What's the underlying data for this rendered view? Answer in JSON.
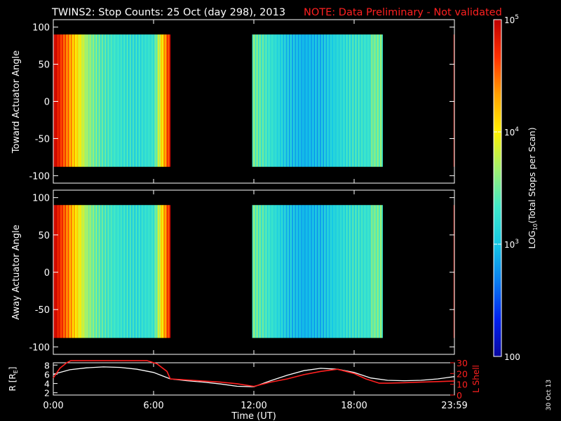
{
  "title": "TWINS2: Stop Counts: 25 Oct (day 298), 2013",
  "note": "NOTE: Data Preliminary - Not validated",
  "footer_date": "30 Oct 13",
  "colors": {
    "note": "#ff2020",
    "rline": "#ffffff",
    "lshell": "#ff2020"
  },
  "chart_data": [
    {
      "type": "heatmap",
      "ylabel": "Toward Actuator Angle",
      "ylim": [
        -110,
        110
      ],
      "yticks": [
        "100",
        "50",
        "0",
        "-50",
        "-100"
      ],
      "ytick_values": [
        100,
        50,
        0,
        -50,
        -100
      ],
      "data_extent": {
        "x_hours": [
          0.0,
          24.0
        ],
        "angle": [
          -88,
          90
        ]
      },
      "data_intervals_hours": [
        [
          0.0,
          7.0
        ],
        [
          11.9,
          19.7
        ],
        [
          23.95,
          24.0
        ]
      ],
      "color_profile": [
        1.0,
        0.78,
        0.55,
        0.45,
        0.42,
        0.4,
        0.42,
        0.95,
        null,
        null,
        null,
        null,
        0.5,
        0.42,
        0.34,
        0.3,
        0.32,
        0.38,
        0.42,
        null,
        null,
        null,
        null,
        0.95
      ]
    },
    {
      "type": "heatmap",
      "ylabel": "Away Actuator Angle",
      "ylim": [
        -110,
        110
      ],
      "yticks": [
        "100",
        "50",
        "0",
        "-50",
        "-100"
      ],
      "ytick_values": [
        100,
        50,
        0,
        -50,
        -100
      ],
      "data_extent": {
        "x_hours": [
          0.0,
          24.0
        ],
        "angle": [
          -88,
          90
        ]
      },
      "data_intervals_hours": [
        [
          0.0,
          7.0
        ],
        [
          11.9,
          19.7
        ],
        [
          23.95,
          24.0
        ]
      ],
      "color_profile": [
        1.0,
        0.78,
        0.55,
        0.45,
        0.42,
        0.4,
        0.42,
        0.95,
        null,
        null,
        null,
        null,
        0.5,
        0.42,
        0.34,
        0.3,
        0.32,
        0.38,
        0.42,
        null,
        null,
        null,
        null,
        0.95
      ]
    },
    {
      "type": "line",
      "xlabel": "Time (UT)",
      "xticks": [
        "0:00",
        "6:00",
        "12:00",
        "18:00",
        "23:59"
      ],
      "xtick_hours": [
        0,
        6,
        12,
        18,
        24
      ],
      "ylabel": "R [R",
      "ylabel_sub": "E",
      "ylabel_end": "]",
      "ylim": [
        1.5,
        8.5
      ],
      "yticks": [
        "8",
        "6",
        "4",
        "2"
      ],
      "ytick_values": [
        8,
        6,
        4,
        2
      ],
      "y2label": "L Shell",
      "y2lim": [
        0,
        30
      ],
      "y2ticks": [
        "30",
        "20",
        "10",
        "0"
      ],
      "y2tick_values": [
        30,
        20,
        10,
        0
      ],
      "series": [
        {
          "axis": "left",
          "x": [
            0,
            1,
            2,
            3,
            4,
            5,
            6,
            7,
            8,
            9,
            10,
            11,
            12,
            13,
            14,
            15,
            16,
            17,
            18,
            19,
            20,
            21,
            22,
            23,
            24
          ],
          "y": [
            6.0,
            7.0,
            7.4,
            7.6,
            7.5,
            7.1,
            6.4,
            5.0,
            4.6,
            4.3,
            3.9,
            3.4,
            3.3,
            4.6,
            5.8,
            6.8,
            7.3,
            7.1,
            6.4,
            5.2,
            4.7,
            4.6,
            4.7,
            5.0,
            5.5
          ]
        },
        {
          "axis": "right",
          "x": [
            0,
            0.4,
            0.8,
            1.05,
            5.6,
            6.2,
            6.8,
            7.0,
            8,
            9,
            10,
            11,
            12,
            13,
            14,
            15,
            16,
            17,
            18,
            18.7,
            19.5,
            20,
            21,
            22,
            23,
            24
          ],
          "y": [
            16,
            25,
            30,
            32,
            32,
            29,
            22,
            15,
            14,
            13,
            12,
            10.5,
            8,
            12,
            15,
            19,
            22,
            24,
            20,
            15,
            11,
            11,
            11.5,
            12,
            12.5,
            13
          ]
        }
      ]
    },
    {
      "type": "colorbar",
      "label": "LOG",
      "label_sub": "10",
      "label_rest": "(Total Stops per Scan)",
      "range": [
        100,
        100000
      ],
      "ticks": [
        "10",
        "10",
        "10",
        "100"
      ],
      "tick_exps": [
        "5",
        "4",
        "3",
        ""
      ],
      "tick_values": [
        100000,
        10000,
        1000,
        100
      ],
      "colormap": [
        "#0a08a0",
        "#0022f0",
        "#0a7df0",
        "#16c8e6",
        "#40e8c8",
        "#a0f070",
        "#fff000",
        "#ffa000",
        "#ff3000",
        "#c00000"
      ]
    }
  ]
}
